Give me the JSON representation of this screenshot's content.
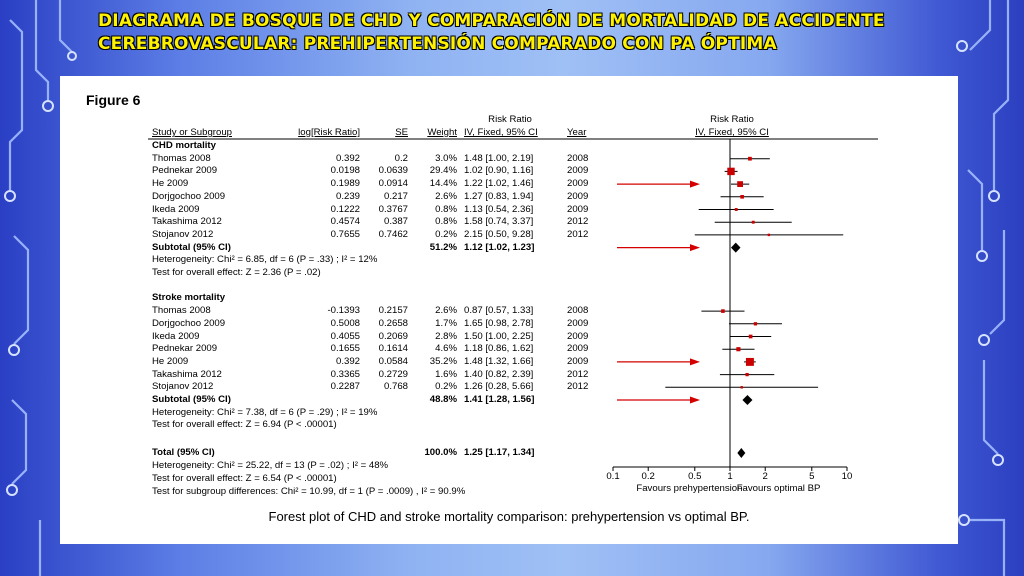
{
  "slide_title": "Diagrama de bosque de CHD y comparación de mortalidad de accidente cerebrovascular: prehipertensión comparado con PA óptima",
  "figure_label": "Figure 6",
  "caption": "Forest plot of CHD and stroke mortality comparison: prehypertension vs optimal BP.",
  "table": {
    "risk_ratio_header": "Risk Ratio",
    "risk_ratio_header_plot": "Risk Ratio",
    "col_study": "Study or Subgroup",
    "col_log": "log[Risk Ratio]",
    "col_se": "SE",
    "col_weight": "Weight",
    "col_ci": "IV, Fixed, 95% CI",
    "col_year": "Year",
    "col_ci_plot": "IV, Fixed, 95% CI"
  },
  "chart_data": {
    "type": "forest",
    "x_scale": "log",
    "xlim": [
      0.1,
      10
    ],
    "x_ticks": [
      "0.1",
      "0.2",
      "0.5",
      "1",
      "2",
      "5",
      "10"
    ],
    "x_tick_values": [
      0.1,
      0.2,
      0.5,
      1,
      2,
      5,
      10
    ],
    "xlabel_left": "Favours prehypertension",
    "xlabel_right": "Favours optimal BP",
    "groups": [
      {
        "name": "CHD mortality",
        "studies": [
          {
            "study": "Thomas 2008",
            "log_rr": "0.392",
            "se": "0.2",
            "weight": "3.0%",
            "ci_text": "1.48 [1.00, 2.19]",
            "year": "2008",
            "rr": 1.48,
            "lo": 1.0,
            "hi": 2.19
          },
          {
            "study": "Pednekar 2009",
            "log_rr": "0.0198",
            "se": "0.0639",
            "weight": "29.4%",
            "ci_text": "1.02 [0.90, 1.16]",
            "year": "2009",
            "rr": 1.02,
            "lo": 0.9,
            "hi": 1.16
          },
          {
            "study": "He 2009",
            "log_rr": "0.1989",
            "se": "0.0914",
            "weight": "14.4%",
            "ci_text": "1.22 [1.02, 1.46]",
            "year": "2009",
            "rr": 1.22,
            "lo": 1.02,
            "hi": 1.46
          },
          {
            "study": "Dorjgochoo 2009",
            "log_rr": "0.239",
            "se": "0.217",
            "weight": "2.6%",
            "ci_text": "1.27 [0.83, 1.94]",
            "year": "2009",
            "rr": 1.27,
            "lo": 0.83,
            "hi": 1.94
          },
          {
            "study": "Ikeda 2009",
            "log_rr": "0.1222",
            "se": "0.3767",
            "weight": "0.8%",
            "ci_text": "1.13 [0.54, 2.36]",
            "year": "2009",
            "rr": 1.13,
            "lo": 0.54,
            "hi": 2.36
          },
          {
            "study": "Takashima 2012",
            "log_rr": "0.4574",
            "se": "0.387",
            "weight": "0.8%",
            "ci_text": "1.58 [0.74, 3.37]",
            "year": "2012",
            "rr": 1.58,
            "lo": 0.74,
            "hi": 3.37
          },
          {
            "study": "Stojanov 2012",
            "log_rr": "0.7655",
            "se": "0.7462",
            "weight": "0.2%",
            "ci_text": "2.15 [0.50, 9.28]",
            "year": "2012",
            "rr": 2.15,
            "lo": 0.5,
            "hi": 9.28
          }
        ],
        "subtotal": {
          "label": "Subtotal (95% CI)",
          "weight": "51.2%",
          "ci_text": "1.12 [1.02, 1.23]",
          "rr": 1.12,
          "lo": 1.02,
          "hi": 1.23
        },
        "heterogeneity": "Heterogeneity: Chi² = 6.85, df = 6 (P = .33) ; I² = 12%",
        "overall": "Test for overall effect: Z = 2.36 (P = .02)"
      },
      {
        "name": "Stroke mortality",
        "studies": [
          {
            "study": "Thomas 2008",
            "log_rr": "-0.1393",
            "se": "0.2157",
            "weight": "2.6%",
            "ci_text": "0.87 [0.57, 1.33]",
            "year": "2008",
            "rr": 0.87,
            "lo": 0.57,
            "hi": 1.33
          },
          {
            "study": "Dorjgochoo 2009",
            "log_rr": "0.5008",
            "se": "0.2658",
            "weight": "1.7%",
            "ci_text": "1.65 [0.98, 2.78]",
            "year": "2009",
            "rr": 1.65,
            "lo": 0.98,
            "hi": 2.78
          },
          {
            "study": "Ikeda 2009",
            "log_rr": "0.4055",
            "se": "0.2069",
            "weight": "2.8%",
            "ci_text": "1.50 [1.00, 2.25]",
            "year": "2009",
            "rr": 1.5,
            "lo": 1.0,
            "hi": 2.25
          },
          {
            "study": "Pednekar 2009",
            "log_rr": "0.1655",
            "se": "0.1614",
            "weight": "4.6%",
            "ci_text": "1.18 [0.86, 1.62]",
            "year": "2009",
            "rr": 1.18,
            "lo": 0.86,
            "hi": 1.62
          },
          {
            "study": "He 2009",
            "log_rr": "0.392",
            "se": "0.0584",
            "weight": "35.2%",
            "ci_text": "1.48 [1.32, 1.66]",
            "year": "2009",
            "rr": 1.48,
            "lo": 1.32,
            "hi": 1.66
          },
          {
            "study": "Takashima 2012",
            "log_rr": "0.3365",
            "se": "0.2729",
            "weight": "1.6%",
            "ci_text": "1.40 [0.82, 2.39]",
            "year": "2012",
            "rr": 1.4,
            "lo": 0.82,
            "hi": 2.39
          },
          {
            "study": "Stojanov 2012",
            "log_rr": "0.2287",
            "se": "0.768",
            "weight": "0.2%",
            "ci_text": "1.26 [0.28, 5.66]",
            "year": "2012",
            "rr": 1.26,
            "lo": 0.28,
            "hi": 5.66
          }
        ],
        "subtotal": {
          "label": "Subtotal (95% CI)",
          "weight": "48.8%",
          "ci_text": "1.41 [1.28, 1.56]",
          "rr": 1.41,
          "lo": 1.28,
          "hi": 1.56
        },
        "heterogeneity": "Heterogeneity: Chi² = 7.38, df = 6 (P = .29) ; I² = 19%",
        "overall": "Test for overall effect: Z = 6.94 (P < .00001)"
      }
    ],
    "total": {
      "label": "Total (95% CI)",
      "weight": "100.0%",
      "ci_text": "1.25 [1.17, 1.34]",
      "rr": 1.25,
      "lo": 1.17,
      "hi": 1.34
    },
    "total_heterogeneity": "Heterogeneity: Chi² = 25.22, df = 13 (P = .02) ; I² = 48%",
    "total_overall": "Test for overall effect: Z = 6.54 (P < .00001)",
    "subgroup_test": "Test for subgroup differences: Chi² = 10.99, df = 1 (P = .0009) , I² = 90.9%",
    "highlighted_rows": [
      "chd-he-2009",
      "chd-subtotal",
      "stroke-he-2009",
      "stroke-subtotal"
    ],
    "colors": {
      "square": "#cc0000",
      "diamond": "#000000",
      "arrow": "#d40000",
      "title": "#fff200"
    }
  }
}
